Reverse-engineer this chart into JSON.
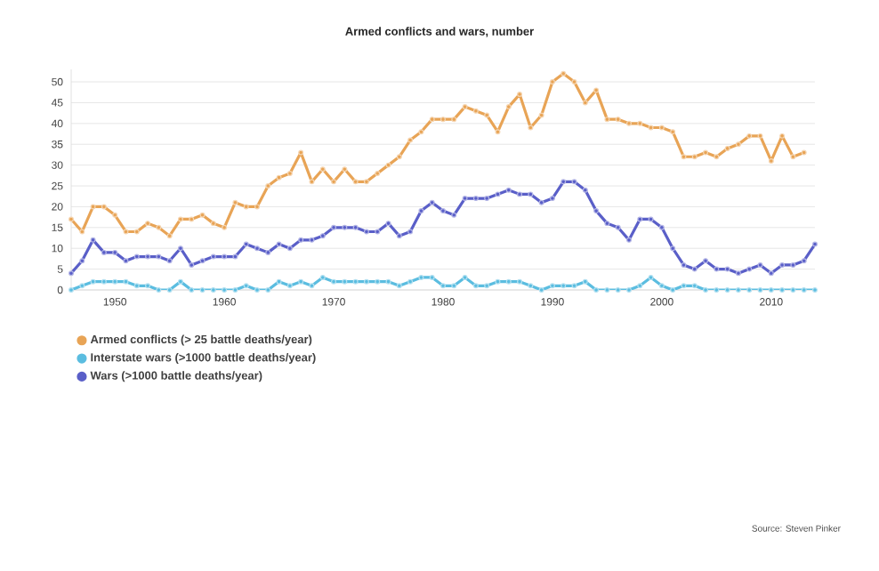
{
  "chart_data": {
    "type": "line",
    "title": "Armed conflicts and wars, number",
    "x": [
      1946,
      1947,
      1948,
      1949,
      1950,
      1951,
      1952,
      1953,
      1954,
      1955,
      1956,
      1957,
      1958,
      1959,
      1960,
      1961,
      1962,
      1963,
      1964,
      1965,
      1966,
      1967,
      1968,
      1969,
      1970,
      1971,
      1972,
      1973,
      1974,
      1975,
      1976,
      1977,
      1978,
      1979,
      1980,
      1981,
      1982,
      1983,
      1984,
      1985,
      1986,
      1987,
      1988,
      1989,
      1990,
      1991,
      1992,
      1993,
      1994,
      1995,
      1996,
      1997,
      1998,
      1999,
      2000,
      2001,
      2002,
      2003,
      2004,
      2005,
      2006,
      2007,
      2008,
      2009,
      2010,
      2011,
      2012,
      2013,
      2014
    ],
    "series": [
      {
        "name": "Armed conflicts (> 25 battle deaths/year)",
        "color": "#e8a456",
        "values": [
          17,
          14,
          20,
          20,
          18,
          14,
          14,
          16,
          15,
          13,
          17,
          17,
          18,
          16,
          15,
          21,
          20,
          20,
          25,
          27,
          28,
          33,
          26,
          29,
          26,
          29,
          26,
          26,
          28,
          30,
          32,
          36,
          38,
          41,
          41,
          41,
          44,
          43,
          42,
          38,
          44,
          47,
          39,
          42,
          50,
          52,
          50,
          45,
          48,
          41,
          41,
          40,
          40,
          39,
          39,
          38,
          32,
          32,
          33,
          32,
          34,
          35,
          37,
          37,
          31,
          37,
          32,
          33,
          null
        ]
      },
      {
        "name": "Interstate wars (>1000 battle deaths/year)",
        "color": "#5bbde0",
        "values": [
          0,
          1,
          2,
          2,
          2,
          2,
          1,
          1,
          0,
          0,
          2,
          0,
          0,
          0,
          0,
          0,
          1,
          0,
          0,
          2,
          1,
          2,
          1,
          3,
          2,
          2,
          2,
          2,
          2,
          2,
          1,
          2,
          3,
          3,
          1,
          1,
          3,
          1,
          1,
          2,
          2,
          2,
          1,
          0,
          1,
          1,
          1,
          2,
          0,
          0,
          0,
          0,
          1,
          3,
          1,
          0,
          1,
          1,
          0,
          0,
          0,
          0,
          0,
          0,
          0,
          0,
          0,
          0,
          0
        ]
      },
      {
        "name": "Wars (>1000 battle deaths/year)",
        "color": "#5a5fc8",
        "values": [
          4,
          7,
          12,
          9,
          9,
          7,
          8,
          8,
          8,
          7,
          10,
          6,
          7,
          8,
          8,
          8,
          11,
          10,
          9,
          11,
          10,
          12,
          12,
          13,
          15,
          15,
          15,
          14,
          14,
          16,
          13,
          14,
          19,
          21,
          19,
          18,
          22,
          22,
          22,
          23,
          24,
          23,
          23,
          21,
          22,
          26,
          26,
          24,
          19,
          16,
          15,
          12,
          17,
          17,
          15,
          10,
          6,
          5,
          7,
          5,
          5,
          4,
          5,
          6,
          4,
          6,
          6,
          7,
          11
        ]
      }
    ],
    "xlim": [
      1946,
      2014
    ],
    "xticks": [
      1950,
      1960,
      1970,
      1980,
      1990,
      2000,
      2010
    ],
    "ylim": [
      0,
      53
    ],
    "yticks": [
      0,
      5,
      10,
      15,
      20,
      25,
      30,
      35,
      40,
      45,
      50
    ],
    "grid": "y",
    "legend": "bottom left",
    "marker": "circle",
    "line_style": "solid",
    "annotations": [
      "Source: Steven Pinker"
    ]
  }
}
